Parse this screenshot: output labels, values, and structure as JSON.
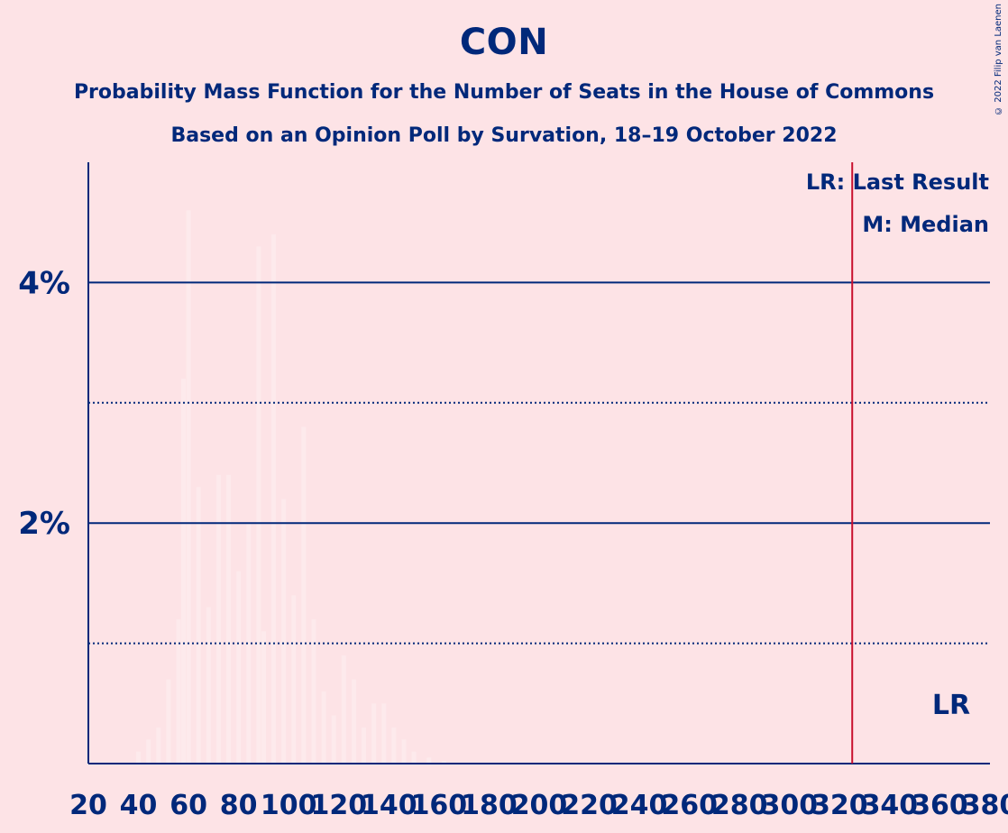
{
  "header": {
    "title": "CON",
    "subtitle1": "Probability Mass Function for the Number of Seats in the House of Commons",
    "subtitle2": "Based on an Opinion Poll by Survation, 18–19 October 2022",
    "copyright": "© 2022 Filip van Laenen"
  },
  "colors": {
    "text": "#00287A",
    "background": "#FDE3E6",
    "last_result_line": "#C8102E"
  },
  "chart_data": {
    "type": "bar",
    "title": "CON",
    "xlabel": "",
    "ylabel": "",
    "xlim": [
      20,
      380
    ],
    "ylim": [
      0,
      5
    ],
    "x_ticks": [
      20,
      40,
      60,
      80,
      100,
      120,
      140,
      160,
      180,
      200,
      220,
      240,
      260,
      280,
      300,
      320,
      340,
      360,
      380
    ],
    "y_ticks": [
      {
        "value": 2,
        "label": "2%"
      },
      {
        "value": 4,
        "label": "4%"
      }
    ],
    "y_minor_gridlines": [
      1,
      3
    ],
    "grid": true,
    "legend": {
      "placement": "top-right",
      "entries": [
        "LR: Last Result",
        "M: Median"
      ]
    },
    "last_result": {
      "x": 325,
      "label": "LR"
    },
    "series": [
      {
        "values": [
          {
            "x": 40,
            "y": 0.1
          },
          {
            "x": 44,
            "y": 0.2
          },
          {
            "x": 48,
            "y": 0.3
          },
          {
            "x": 52,
            "y": 0.7
          },
          {
            "x": 56,
            "y": 1.2
          },
          {
            "x": 58,
            "y": 3.2
          },
          {
            "x": 60,
            "y": 4.6
          },
          {
            "x": 64,
            "y": 2.3
          },
          {
            "x": 68,
            "y": 1.3
          },
          {
            "x": 72,
            "y": 2.4
          },
          {
            "x": 76,
            "y": 2.4
          },
          {
            "x": 80,
            "y": 1.6
          },
          {
            "x": 84,
            "y": 2.0
          },
          {
            "x": 88,
            "y": 4.3
          },
          {
            "x": 90,
            "y": 1.1
          },
          {
            "x": 94,
            "y": 4.4
          },
          {
            "x": 98,
            "y": 2.2
          },
          {
            "x": 102,
            "y": 1.4
          },
          {
            "x": 106,
            "y": 2.8
          },
          {
            "x": 110,
            "y": 1.2
          },
          {
            "x": 114,
            "y": 0.6
          },
          {
            "x": 118,
            "y": 0.4
          },
          {
            "x": 122,
            "y": 0.9
          },
          {
            "x": 126,
            "y": 0.7
          },
          {
            "x": 130,
            "y": 0.3
          },
          {
            "x": 134,
            "y": 0.5
          },
          {
            "x": 138,
            "y": 0.5
          },
          {
            "x": 142,
            "y": 0.3
          },
          {
            "x": 146,
            "y": 0.2
          },
          {
            "x": 150,
            "y": 0.1
          },
          {
            "x": 156,
            "y": 0.05
          },
          {
            "x": 162,
            "y": 0.02
          }
        ]
      }
    ]
  }
}
